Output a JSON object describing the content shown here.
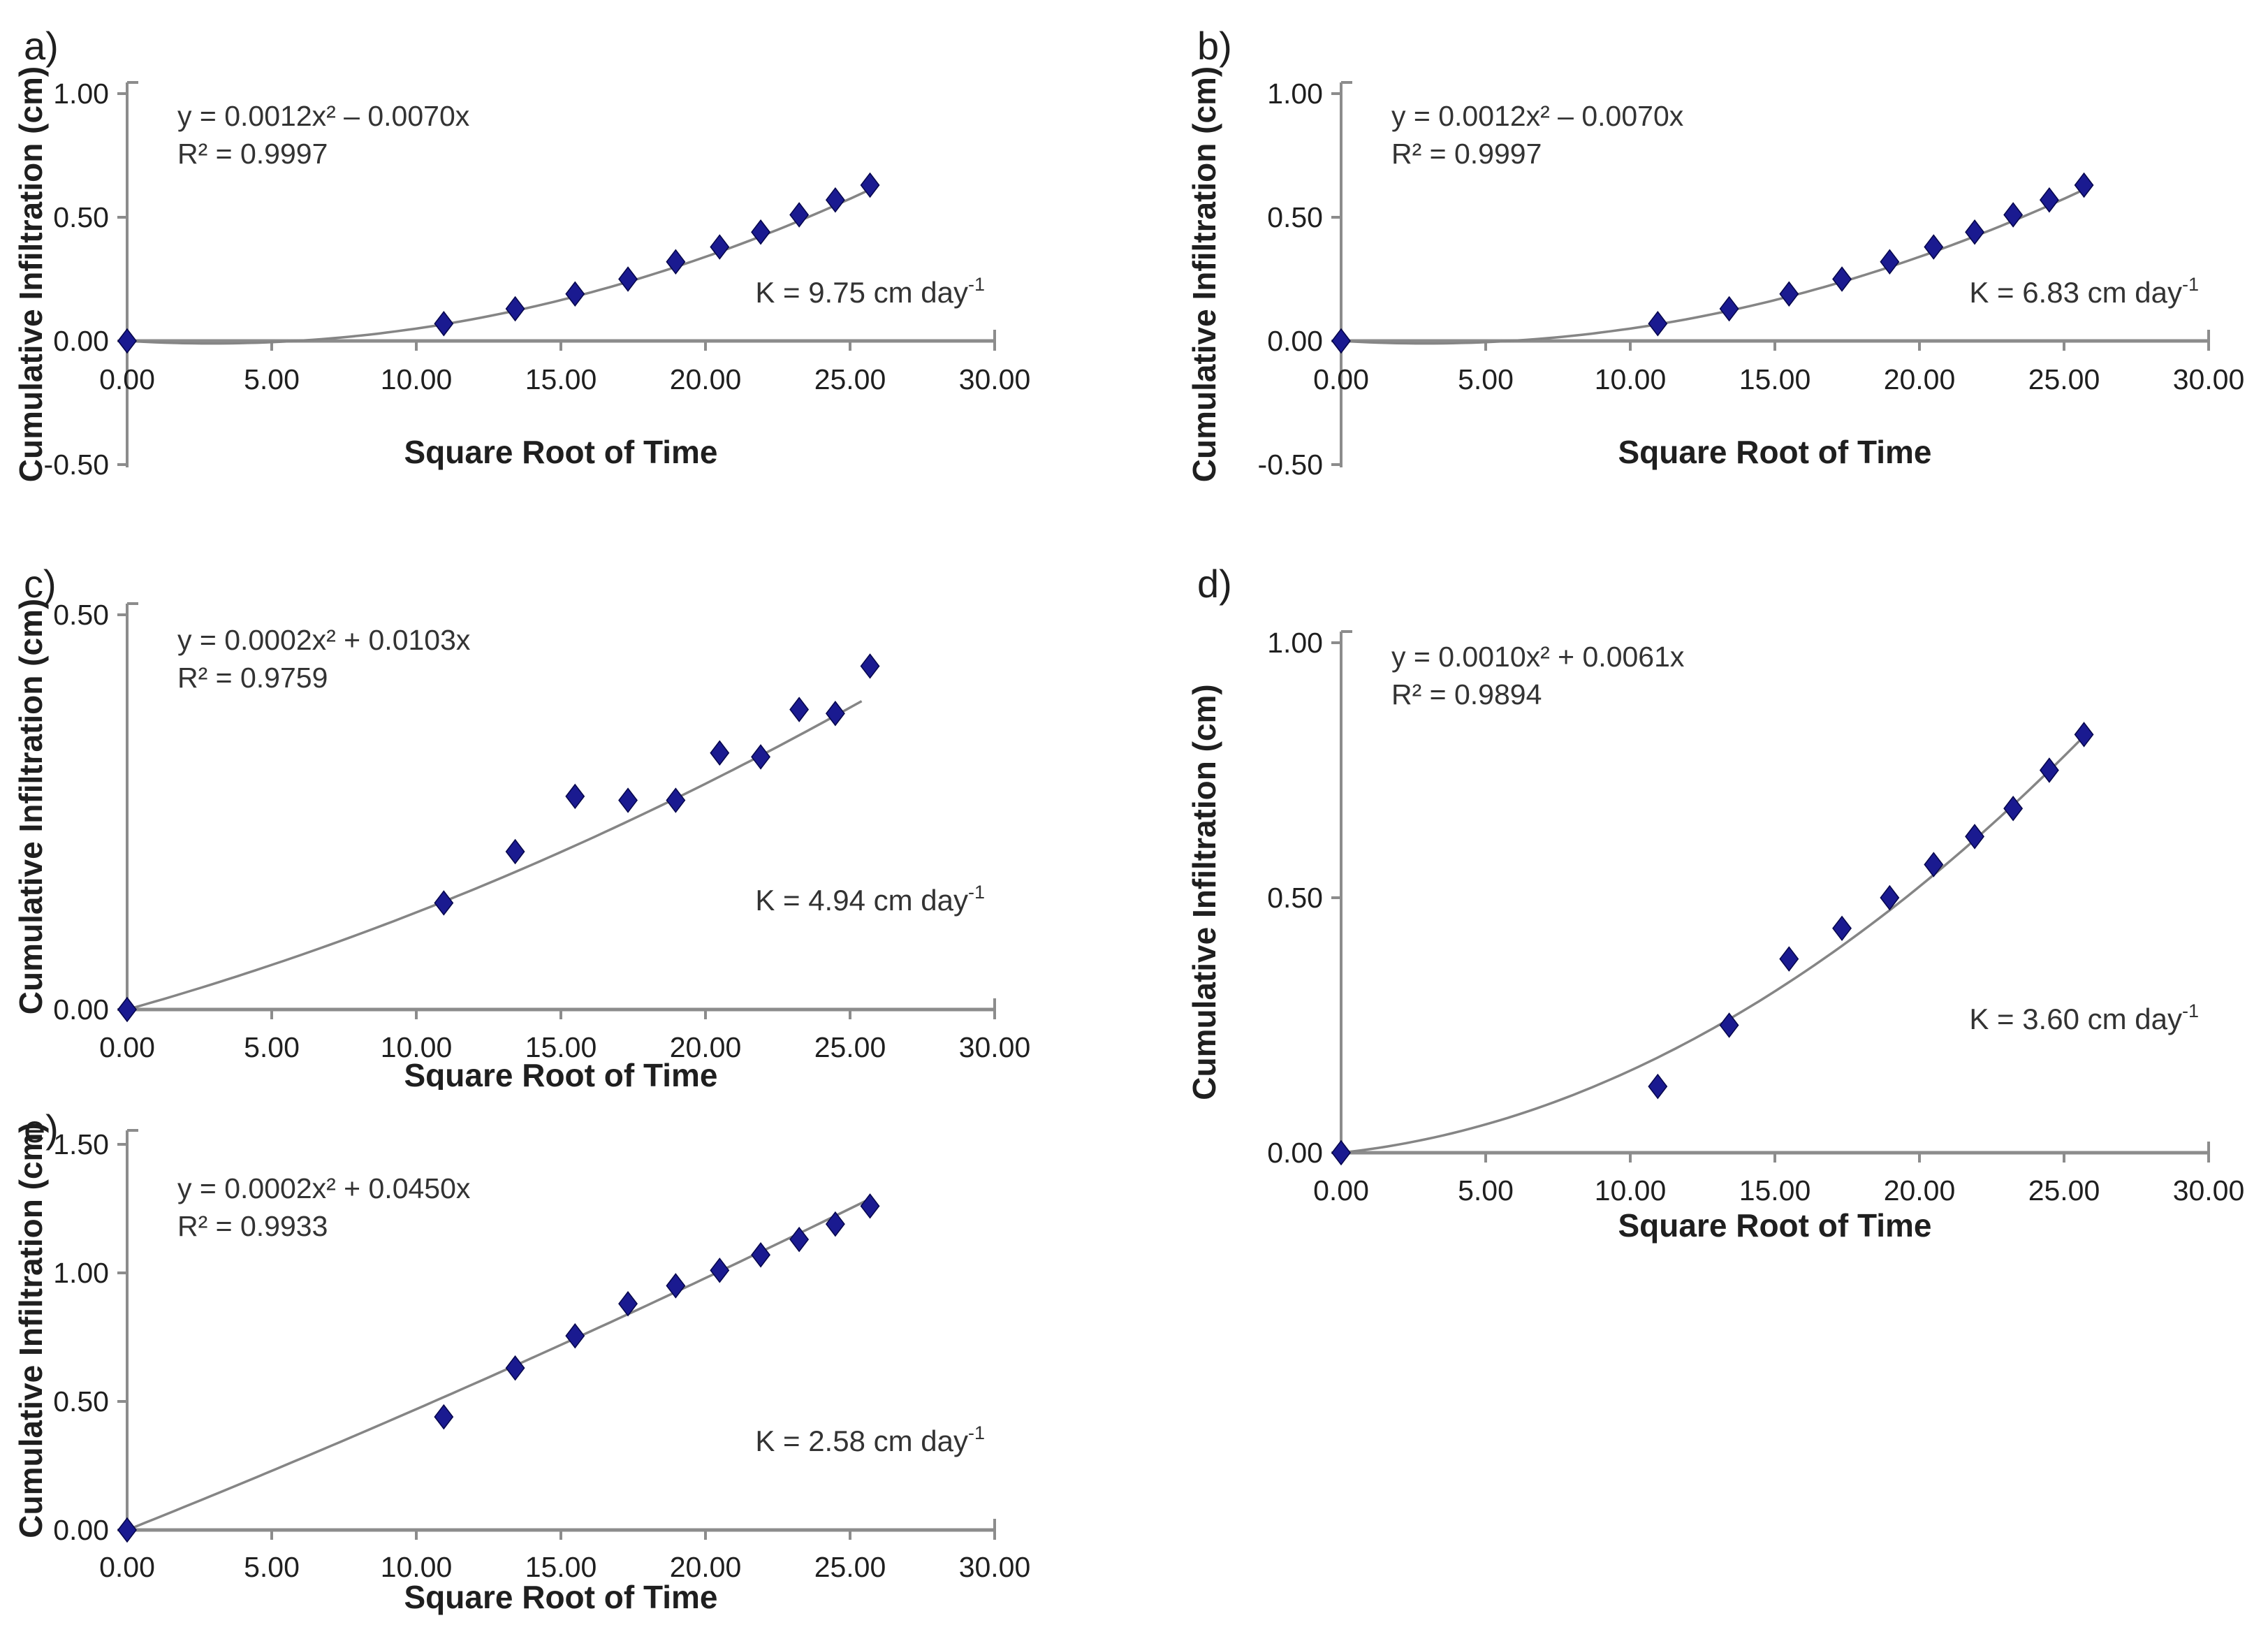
{
  "figure": {
    "background": "#ffffff",
    "point_color": "#1a1a90",
    "point_edge_color": "#05054a",
    "line_color": "#858585",
    "axis_color": "#8c8c8c",
    "text_color": "#1f1f1f",
    "annotation_color": "#333333"
  },
  "chart_data": [
    {
      "id": "a",
      "type": "scatter",
      "letter": "a)",
      "equation": "y = 0.0012x² – 0.0070x",
      "r_squared": "R² = 0.9997",
      "k_label": "K = 9.75 cm day",
      "k_superscript": "-1",
      "xlabel": "Square Root of Time",
      "ylabel": "Cumulative Infiltration (cm)",
      "xlim": [
        0,
        30
      ],
      "ylim": [
        -0.5,
        1.0
      ],
      "grid": false,
      "legend": "none",
      "x_ticks": [
        "0.00",
        "5.00",
        "10.00",
        "15.00",
        "20.00",
        "25.00",
        "30.00"
      ],
      "y_ticks": [
        "-0.50",
        "0.00",
        "0.50",
        "1.00"
      ],
      "x": [
        0,
        10.95,
        13.42,
        15.49,
        17.32,
        18.97,
        20.49,
        21.91,
        23.24,
        24.49,
        25.69
      ],
      "y": [
        0,
        0.07,
        0.13,
        0.19,
        0.25,
        0.32,
        0.38,
        0.44,
        0.51,
        0.57,
        0.63
      ],
      "fit": {
        "quadratic": 0.0012,
        "linear": -0.007,
        "x_end": 25.69
      }
    },
    {
      "id": "b",
      "type": "scatter",
      "letter": "b)",
      "equation": "y = 0.0012x² – 0.0070x",
      "r_squared": "R² = 0.9997",
      "k_label": "K = 6.83 cm day",
      "k_superscript": "-1",
      "xlabel": "Square Root of Time",
      "ylabel": "Cumulative Infiltration (cm)",
      "xlim": [
        0,
        30
      ],
      "ylim": [
        -0.5,
        1.0
      ],
      "grid": false,
      "legend": "none",
      "x_ticks": [
        "0.00",
        "5.00",
        "10.00",
        "15.00",
        "20.00",
        "25.00",
        "30.00"
      ],
      "y_ticks": [
        "-0.50",
        "0.00",
        "0.50",
        "1.00"
      ],
      "x": [
        0,
        10.95,
        13.42,
        15.49,
        17.32,
        18.97,
        20.49,
        21.91,
        23.24,
        24.49,
        25.69
      ],
      "y": [
        0,
        0.07,
        0.13,
        0.19,
        0.25,
        0.32,
        0.38,
        0.44,
        0.51,
        0.57,
        0.63
      ],
      "fit": {
        "quadratic": 0.0012,
        "linear": -0.007,
        "x_end": 25.69
      }
    },
    {
      "id": "c",
      "type": "scatter",
      "letter": "c)",
      "equation": "y = 0.0002x² + 0.0103x",
      "r_squared": "R² = 0.9759",
      "k_label": "K = 4.94 cm day",
      "k_superscript": "-1",
      "xlabel": "Square Root of Time",
      "ylabel": "Cumulative Infiltration (cm)",
      "xlim": [
        0,
        30
      ],
      "ylim": [
        0,
        0.5
      ],
      "grid": false,
      "legend": "none",
      "x_ticks": [
        "0.00",
        "5.00",
        "10.00",
        "15.00",
        "20.00",
        "25.00",
        "30.00"
      ],
      "y_ticks": [
        "0.00",
        "0.50"
      ],
      "x": [
        0,
        10.95,
        13.42,
        15.49,
        17.32,
        18.97,
        20.49,
        21.91,
        23.24,
        24.49,
        25.69
      ],
      "y": [
        0,
        0.135,
        0.2,
        0.27,
        0.265,
        0.265,
        0.325,
        0.32,
        0.38,
        0.375,
        0.435
      ],
      "fit": {
        "quadratic": 0.0002,
        "linear": 0.0103,
        "x_end": 25.4
      }
    },
    {
      "id": "d",
      "type": "scatter",
      "letter": "d)",
      "equation": "y = 0.0010x² + 0.0061x",
      "r_squared": "R² = 0.9894",
      "k_label": "K = 3.60 cm day",
      "k_superscript": "-1",
      "xlabel": "Square Root of Time",
      "ylabel": "Cumulative Infiltration (cm)",
      "xlim": [
        0,
        30
      ],
      "ylim": [
        0,
        1.0
      ],
      "grid": false,
      "legend": "none",
      "x_ticks": [
        "0.00",
        "5.00",
        "10.00",
        "15.00",
        "20.00",
        "25.00",
        "30.00"
      ],
      "y_ticks": [
        "0.00",
        "0.50",
        "1.00"
      ],
      "x": [
        0,
        10.95,
        13.42,
        15.49,
        17.32,
        18.97,
        20.49,
        21.91,
        23.24,
        24.49,
        25.69
      ],
      "y": [
        0,
        0.13,
        0.25,
        0.38,
        0.44,
        0.5,
        0.565,
        0.62,
        0.675,
        0.75,
        0.82
      ],
      "fit": {
        "quadratic": 0.001,
        "linear": 0.0061,
        "x_end": 25.69
      }
    },
    {
      "id": "e",
      "type": "scatter",
      "letter": "e)",
      "equation": "y = 0.0002x² + 0.0450x",
      "r_squared": "R² = 0.9933",
      "k_label": "K = 2.58 cm day",
      "k_superscript": "-1",
      "xlabel": "Square Root of Time",
      "ylabel": "Cumulative Infiltration (cm)",
      "xlim": [
        0,
        30
      ],
      "ylim": [
        0,
        1.5
      ],
      "grid": false,
      "legend": "none",
      "x_ticks": [
        "0.00",
        "5.00",
        "10.00",
        "15.00",
        "20.00",
        "25.00",
        "30.00"
      ],
      "y_ticks": [
        "0.00",
        "0.50",
        "1.00",
        "1.50"
      ],
      "x": [
        0,
        10.95,
        13.42,
        15.49,
        17.32,
        18.97,
        20.49,
        21.91,
        23.24,
        24.49,
        25.69
      ],
      "y": [
        0,
        0.44,
        0.63,
        0.755,
        0.88,
        0.95,
        1.01,
        1.07,
        1.13,
        1.19,
        1.26
      ],
      "fit": {
        "quadratic": 0.0002,
        "linear": 0.045,
        "x_end": 25.69
      }
    }
  ]
}
